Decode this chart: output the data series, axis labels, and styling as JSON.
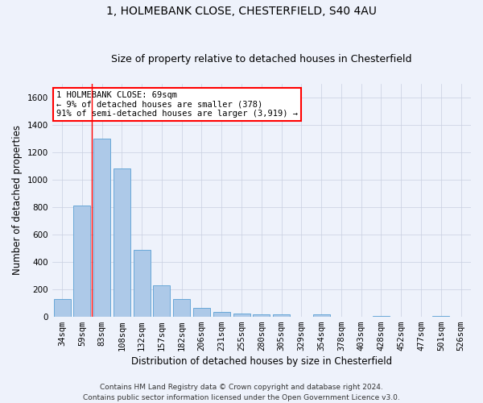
{
  "title_line1": "1, HOLMEBANK CLOSE, CHESTERFIELD, S40 4AU",
  "title_line2": "Size of property relative to detached houses in Chesterfield",
  "xlabel": "Distribution of detached houses by size in Chesterfield",
  "ylabel": "Number of detached properties",
  "categories": [
    "34sqm",
    "59sqm",
    "83sqm",
    "108sqm",
    "132sqm",
    "157sqm",
    "182sqm",
    "206sqm",
    "231sqm",
    "255sqm",
    "280sqm",
    "305sqm",
    "329sqm",
    "354sqm",
    "378sqm",
    "403sqm",
    "428sqm",
    "452sqm",
    "477sqm",
    "501sqm",
    "526sqm"
  ],
  "values": [
    130,
    810,
    1300,
    1080,
    490,
    230,
    130,
    65,
    35,
    20,
    15,
    15,
    0,
    15,
    0,
    0,
    5,
    0,
    0,
    5,
    0
  ],
  "bar_color": "#adc9e8",
  "bar_edge_color": "#5a9fd4",
  "ylim": [
    0,
    1700
  ],
  "yticks": [
    0,
    200,
    400,
    600,
    800,
    1000,
    1200,
    1400,
    1600
  ],
  "vline_x_index": 1.48,
  "annotation_text_line1": "1 HOLMEBANK CLOSE: 69sqm",
  "annotation_text_line2": "← 9% of detached houses are smaller (378)",
  "annotation_text_line3": "91% of semi-detached houses are larger (3,919) →",
  "annotation_box_facecolor": "white",
  "annotation_box_edgecolor": "red",
  "vline_color": "red",
  "footer_line1": "Contains HM Land Registry data © Crown copyright and database right 2024.",
  "footer_line2": "Contains public sector information licensed under the Open Government Licence v3.0.",
  "background_color": "#eef2fb",
  "grid_color": "#c8cfe0",
  "title_fontsize": 10,
  "subtitle_fontsize": 9,
  "axis_label_fontsize": 8.5,
  "tick_fontsize": 7.5,
  "annotation_fontsize": 7.5,
  "footer_fontsize": 6.5
}
